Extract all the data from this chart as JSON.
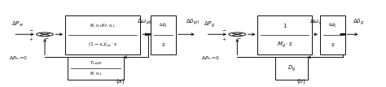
{
  "bg_color": "#ffffff",
  "fig_width": 4.74,
  "fig_height": 1.07,
  "dpi": 100
}
